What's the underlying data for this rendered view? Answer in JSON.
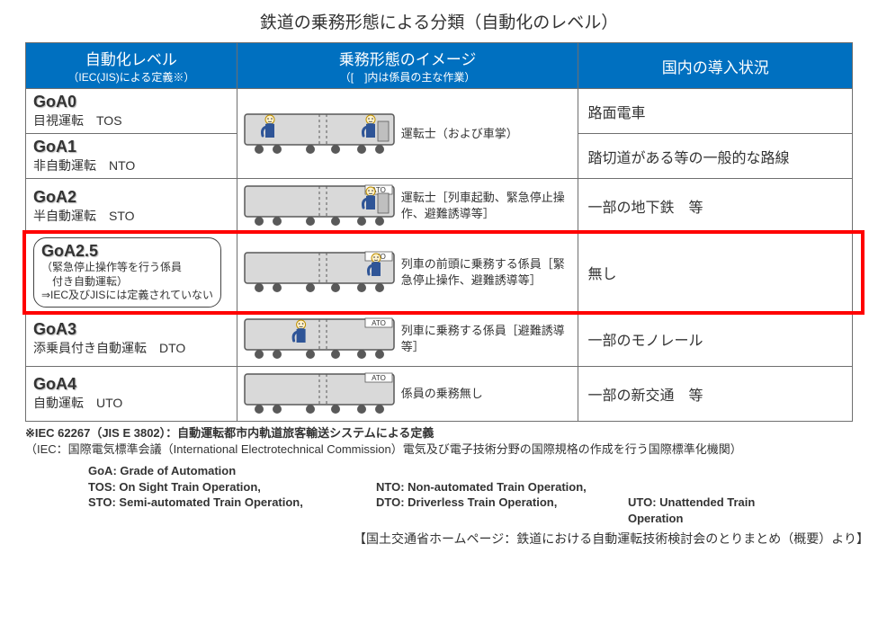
{
  "title": "鉄道の乗務形態による分類（自動化のレベル）",
  "header": {
    "col1_main": "自動化レベル",
    "col1_sub": "（IEC(JIS)による定義※）",
    "col2_main": "乗務形態のイメージ",
    "col2_sub": "（[　]内は係員の主な作業）",
    "col3_main": "国内の導入状況"
  },
  "rows": [
    {
      "id": "goa0",
      "code": "GoA0",
      "name": "目視運転　TOS",
      "image_key": "two_cab",
      "image_caption": "運転士（および車掌）",
      "status": "路面電車",
      "merge_image_with_next": true
    },
    {
      "id": "goa1",
      "code": "GoA1",
      "name": "非自動運転　NTO",
      "status": "踏切道がある等の一般的な路線"
    },
    {
      "id": "goa2",
      "code": "GoA2",
      "name": "半自動運転　STO",
      "image_key": "cab_ato",
      "image_caption": "運転士［列車起動、緊急停止操作、避難誘導等］",
      "status": "一部の地下鉄　等"
    },
    {
      "id": "goa25",
      "code": "GoA2.5",
      "name_lines": [
        "（緊急停止操作等を行う係員",
        "　付き自動運転）",
        "⇒IEC及びJISには定義されていない"
      ],
      "image_key": "front_ato",
      "image_caption": "列車の前頭に乗務する係員［緊急停止操作、避難誘導等］",
      "status": "無し",
      "highlight": true,
      "balloon": true
    },
    {
      "id": "goa3",
      "code": "GoA3",
      "name": "添乗員付き自動運転　DTO",
      "image_key": "mid_ato",
      "image_caption": "列車に乗務する係員［避難誘導等］",
      "status": "一部のモノレール"
    },
    {
      "id": "goa4",
      "code": "GoA4",
      "name": "自動運転　UTO",
      "image_key": "none_ato",
      "image_caption": "係員の乗務無し",
      "status": "一部の新交通　等"
    }
  ],
  "train_style": {
    "body_fill": "#d9d9d9",
    "body_stroke": "#595959",
    "wheel_fill": "#595959",
    "person_body": "#2f5597",
    "person_head_fill": "#fff2cc",
    "person_head_stroke": "#bf9000",
    "ato_label": "ATO"
  },
  "footnote1": "※IEC 62267（JIS E 3802）：自動運転都市内軌道旅客輸送システムによる定義",
  "footnote2": "（IEC：国際電気標準会議（International Electrotechnical Commission）電気及び電子技術分野の国際規格の作成を行う国際標準化機関）",
  "abbr": {
    "goa": "GoA: Grade of Automation",
    "tos": "TOS: On Sight Train Operation,",
    "nto": "NTO: Non-automated Train Operation,",
    "sto": "STO: Semi-automated Train Operation,",
    "dto": "DTO: Driverless Train Operation,",
    "uto": "UTO: Unattended Train Operation"
  },
  "source": "【国土交通省ホームページ：鉄道における自動運転技術検討会のとりまとめ（概要）より】"
}
